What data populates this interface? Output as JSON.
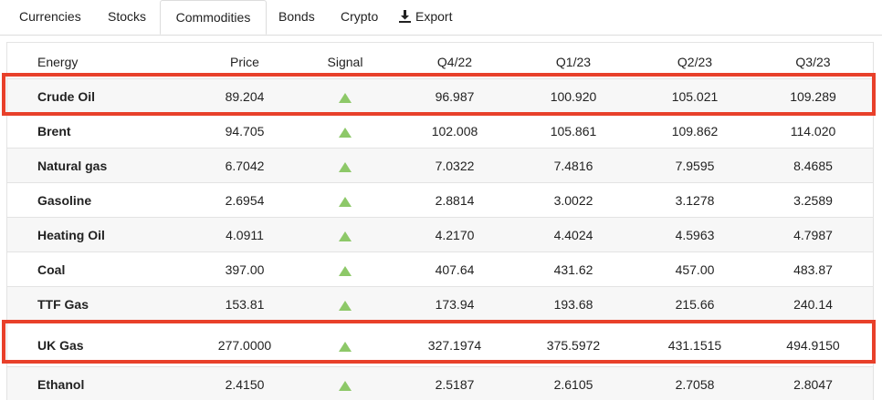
{
  "tabs": [
    {
      "label": "Currencies"
    },
    {
      "label": "Stocks"
    },
    {
      "label": "Commodities"
    },
    {
      "label": "Bonds"
    },
    {
      "label": "Crypto"
    },
    {
      "label": "Export"
    }
  ],
  "active_tab": "Commodities",
  "table": {
    "headers": [
      "Energy",
      "Price",
      "Signal",
      "Q4/22",
      "Q1/23",
      "Q2/23",
      "Q3/23"
    ],
    "rows": [
      {
        "name": "Crude Oil",
        "price": "89.204",
        "signal": "up-triangle-icon",
        "q4_22": "96.987",
        "q1_23": "100.920",
        "q2_23": "105.021",
        "q3_23": "109.289"
      },
      {
        "name": "Brent",
        "price": "94.705",
        "signal": "up-triangle-icon",
        "q4_22": "102.008",
        "q1_23": "105.861",
        "q2_23": "109.862",
        "q3_23": "114.020"
      },
      {
        "name": "Natural gas",
        "price": "6.7042",
        "signal": "up-triangle-icon",
        "q4_22": "7.0322",
        "q1_23": "7.4816",
        "q2_23": "7.9595",
        "q3_23": "8.4685"
      },
      {
        "name": "Gasoline",
        "price": "2.6954",
        "signal": "up-triangle-icon",
        "q4_22": "2.8814",
        "q1_23": "3.0022",
        "q2_23": "3.1278",
        "q3_23": "3.2589"
      },
      {
        "name": "Heating Oil",
        "price": "4.0911",
        "signal": "up-triangle-icon",
        "q4_22": "4.2170",
        "q1_23": "4.4024",
        "q2_23": "4.5963",
        "q3_23": "4.7987"
      },
      {
        "name": "Coal",
        "price": "397.00",
        "signal": "up-triangle-icon",
        "q4_22": "407.64",
        "q1_23": "431.62",
        "q2_23": "457.00",
        "q3_23": "483.87"
      },
      {
        "name": "TTF Gas",
        "price": "153.81",
        "signal": "up-triangle-icon",
        "q4_22": "173.94",
        "q1_23": "193.68",
        "q2_23": "215.66",
        "q3_23": "240.14"
      },
      {
        "name": "UK Gas",
        "price": "277.0000",
        "signal": "up-triangle-icon",
        "q4_22": "327.1974",
        "q1_23": "375.5972",
        "q2_23": "431.1515",
        "q3_23": "494.9150"
      },
      {
        "name": "Ethanol",
        "price": "2.4150",
        "signal": "up-triangle-icon",
        "q4_22": "2.5187",
        "q1_23": "2.6105",
        "q2_23": "2.7058",
        "q3_23": "2.8047"
      }
    ]
  },
  "highlighted_rows": [
    "Crude Oil",
    "UK Gas"
  ],
  "colors": {
    "signal_up": "#8dc868",
    "highlight_border": "#e8402a",
    "row_alt": "#f7f7f7",
    "border": "#e3e3e3"
  }
}
